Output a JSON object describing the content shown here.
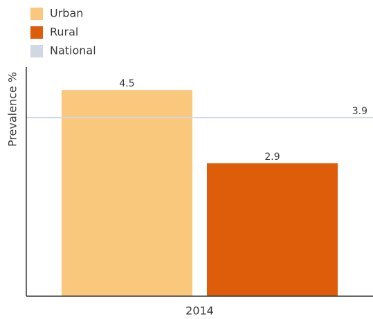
{
  "chart_data": {
    "type": "bar",
    "y_label": "Prevalence %",
    "categories": [
      "2014"
    ],
    "series": [
      {
        "name": "Urban",
        "color": "#fac87c",
        "values": [
          4.5
        ]
      },
      {
        "name": "Rural",
        "color": "#de5d0a",
        "values": [
          2.9
        ]
      },
      {
        "name": "National",
        "color": "#cfd8e3",
        "values": [
          3.9
        ],
        "type": "line"
      }
    ],
    "ylim": [
      0,
      5
    ]
  }
}
